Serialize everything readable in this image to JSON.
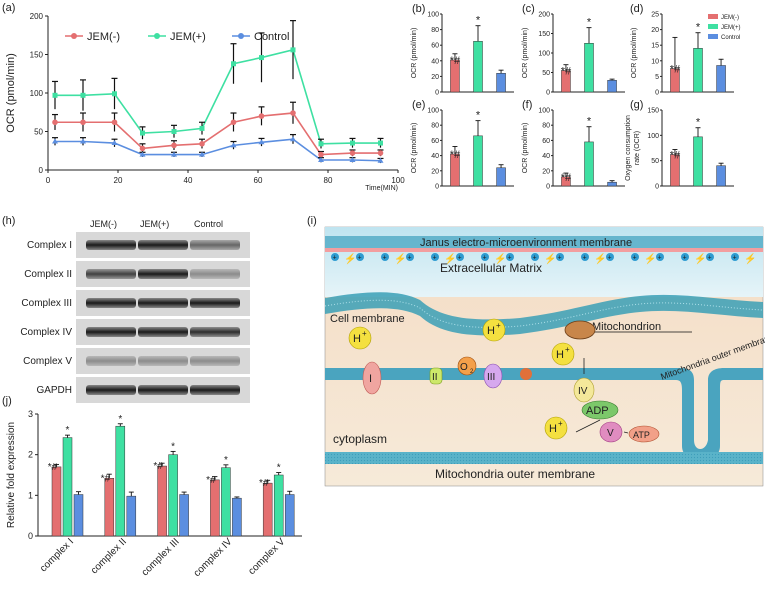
{
  "colors": {
    "jem_minus": "#e46f70",
    "jem_plus": "#3ee0a2",
    "control": "#5b8ee0"
  },
  "panels": {
    "a": "(a)",
    "b": "(b)",
    "c": "(c)",
    "d": "(d)",
    "e": "(e)",
    "f": "(f)",
    "g": "(g)",
    "h": "(h)",
    "i": "(i)",
    "j": "(j)"
  },
  "chart_data": [
    {
      "id": "a",
      "type": "line",
      "ylabel": "OCR (pmol/min)",
      "xlabel": "Time(MIN)",
      "xlim": [
        0,
        100
      ],
      "ylim": [
        0,
        200
      ],
      "xticks": [
        "0",
        "20",
        "40",
        "60",
        "80",
        "100"
      ],
      "yticks": [
        "0",
        "50",
        "100",
        "150",
        "200"
      ],
      "legend": [
        "JEM(-)",
        "JEM(+)",
        "Control"
      ],
      "x": [
        2,
        10,
        19,
        27,
        36,
        44,
        53,
        61,
        70,
        78,
        87,
        95
      ],
      "series": [
        {
          "name": "JEM(-)",
          "values": [
            62,
            62,
            62,
            28,
            32,
            34,
            62,
            70,
            74,
            20,
            22,
            22
          ],
          "err": [
            10,
            12,
            12,
            6,
            6,
            6,
            12,
            12,
            14,
            4,
            4,
            4
          ]
        },
        {
          "name": "JEM(+)",
          "values": [
            97,
            97,
            99,
            48,
            50,
            54,
            138,
            146,
            156,
            34,
            35,
            35
          ],
          "err": [
            18,
            20,
            20,
            8,
            8,
            8,
            26,
            32,
            38,
            6,
            6,
            6
          ]
        },
        {
          "name": "Control",
          "values": [
            37,
            37,
            35,
            20,
            20,
            20,
            32,
            36,
            40,
            13,
            13,
            12
          ],
          "err": [
            5,
            5,
            5,
            3,
            3,
            3,
            5,
            5,
            6,
            3,
            3,
            3
          ]
        }
      ]
    },
    {
      "id": "b",
      "type": "bar",
      "ylabel": "OCR (pmol/min)",
      "ylim": [
        0,
        100
      ],
      "yticks": [
        "0",
        "20",
        "40",
        "60",
        "80",
        "100"
      ],
      "values": [
        41,
        65,
        24
      ],
      "err": [
        8,
        20,
        4
      ],
      "marks": [
        "*#",
        "*",
        ""
      ]
    },
    {
      "id": "c",
      "type": "bar",
      "ylabel": "OCR (pmol/min)",
      "ylim": [
        0,
        200
      ],
      "yticks": [
        "0",
        "50",
        "100",
        "150",
        "200"
      ],
      "values": [
        55,
        125,
        30
      ],
      "err": [
        15,
        40,
        3
      ],
      "marks": [
        "*#",
        "*",
        ""
      ]
    },
    {
      "id": "d",
      "type": "bar",
      "ylabel": "OCR (pmol/min)",
      "ylim": [
        0,
        25
      ],
      "yticks": [
        "0",
        "5",
        "10",
        "15",
        "20",
        "25"
      ],
      "values": [
        7.5,
        14,
        8.5
      ],
      "err": [
        10,
        5,
        2
      ],
      "marks": [
        "*#",
        "*",
        ""
      ]
    },
    {
      "id": "e",
      "type": "bar",
      "ylabel": "OCR (pmol/min)",
      "ylim": [
        0,
        100
      ],
      "yticks": [
        "0",
        "20",
        "40",
        "60",
        "80",
        "100"
      ],
      "values": [
        42,
        66,
        24
      ],
      "err": [
        10,
        20,
        4
      ],
      "marks": [
        "*#",
        "*",
        ""
      ]
    },
    {
      "id": "f",
      "type": "bar",
      "ylabel": "OCR (pmol/min)",
      "ylim": [
        0,
        100
      ],
      "yticks": [
        "0",
        "20",
        "40",
        "60",
        "80",
        "100"
      ],
      "values": [
        12,
        58,
        5
      ],
      "err": [
        5,
        20,
        2
      ],
      "marks": [
        "*#",
        "*",
        ""
      ]
    },
    {
      "id": "g",
      "type": "bar",
      "ylabel": "Oxygen consumption rate (OCR)",
      "ylim": [
        0,
        150
      ],
      "yticks": [
        "0",
        "50",
        "100",
        "150"
      ],
      "values": [
        62,
        97,
        40
      ],
      "err": [
        10,
        18,
        5
      ],
      "marks": [
        "*#",
        "*",
        ""
      ]
    },
    {
      "id": "j",
      "type": "bar",
      "ylabel": "Relative fold expression",
      "ylim": [
        0,
        3
      ],
      "yticks": [
        "0",
        "1",
        "2",
        "3"
      ],
      "categories": [
        "complex I",
        "complex II",
        "complex III",
        "complex IV",
        "complex V"
      ],
      "series": [
        {
          "name": "JEM(-)",
          "values": [
            1.7,
            1.42,
            1.72,
            1.38,
            1.3
          ],
          "err": [
            0.06,
            0.1,
            0.07,
            0.08,
            0.07
          ]
        },
        {
          "name": "JEM(+)",
          "values": [
            2.42,
            2.7,
            2.0,
            1.68,
            1.5
          ],
          "err": [
            0.06,
            0.06,
            0.08,
            0.07,
            0.06
          ]
        },
        {
          "name": "Control",
          "values": [
            1.02,
            0.98,
            1.02,
            0.93,
            1.02
          ],
          "err": [
            0.07,
            0.1,
            0.06,
            0.03,
            0.08
          ]
        }
      ],
      "marks": [
        [
          "*#",
          "*"
        ],
        [
          "*#",
          "*"
        ],
        [
          "*#",
          "*"
        ],
        [
          "*#",
          "*"
        ],
        [
          "*#",
          "*"
        ]
      ]
    }
  ],
  "legend_small": [
    "JEM(-)",
    "JEM(+)",
    "Control"
  ],
  "blot": {
    "columns": [
      "JEM(-)",
      "JEM(+)",
      "Control"
    ],
    "rows": [
      "Complex I",
      "Complex II",
      "Complex III",
      "Complex IV",
      "Complex V",
      "GAPDH"
    ]
  },
  "diagram": {
    "membrane_title": "Janus electro-microenvironment membrane",
    "ecm": "Extracellular Matrix",
    "cell_membrane": "Cell membrane",
    "mitochondrion": "Mitochondrion",
    "mito_outer": "Mitochondria outer membrane",
    "cytoplasm": "cytoplasm",
    "mito_outer_bottom": "Mitochondria outer membrane",
    "complexes": [
      "I",
      "II",
      "III",
      "IV",
      "V"
    ],
    "h_plus": "H",
    "plus": "+",
    "o2": "O",
    "o2_sub": "2",
    "adp": "ADP",
    "atp": "ATP",
    "ion_plus": "+",
    "bolt": "⚡"
  }
}
